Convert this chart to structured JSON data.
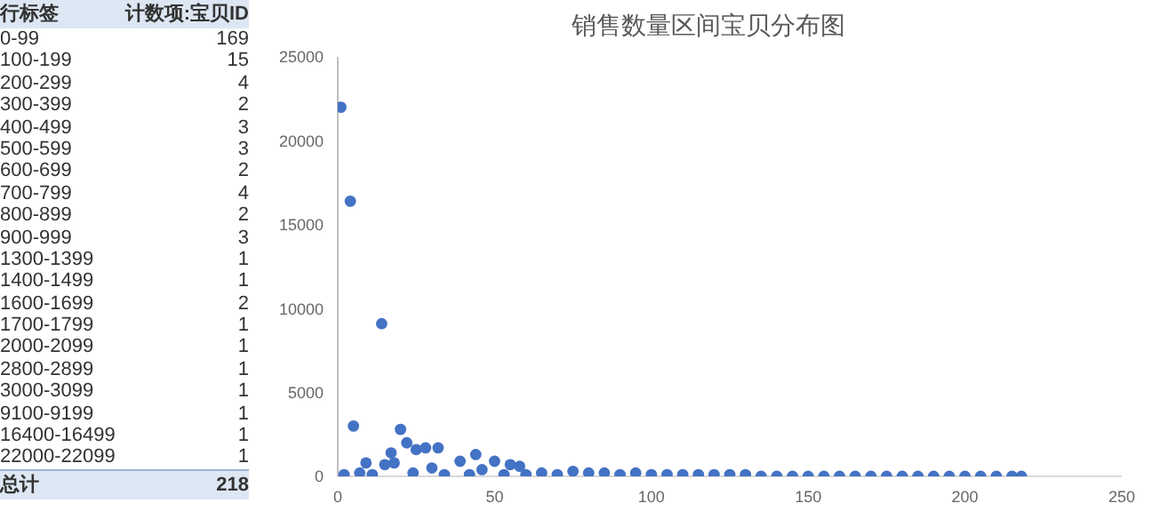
{
  "chart_data": [
    {
      "type": "other",
      "xlabel": "行标签",
      "ylabel": "计数项:宝贝ID",
      "categories": [
        "0-99",
        "100-199",
        "200-299",
        "300-399",
        "400-499",
        "500-599",
        "600-699",
        "700-799",
        "800-899",
        "900-999",
        "1300-1399",
        "1400-1499",
        "1600-1699",
        "1700-1799",
        "2000-2099",
        "2800-2899",
        "3000-3099",
        "9100-9199",
        "16400-16499",
        "22000-22099"
      ],
      "values": [
        169,
        15,
        4,
        2,
        3,
        3,
        2,
        4,
        2,
        3,
        1,
        1,
        2,
        1,
        1,
        1,
        1,
        1,
        1,
        1
      ],
      "data_labels": true,
      "annotations": [
        "总计"
      ],
      "totals": [
        "218"
      ]
    },
    {
      "type": "scatter",
      "title": "销售数量区间宝贝分布图",
      "marker": "circle",
      "grid": false,
      "xlim": [
        0,
        250
      ],
      "xticks": [
        0,
        50,
        100,
        150,
        200,
        250
      ],
      "ylim": [
        0,
        25000
      ],
      "yticks": [
        0,
        5000,
        10000,
        15000,
        20000,
        25000
      ],
      "series": [
        {
          "color": "#4472c4",
          "x": [
            1,
            2,
            4,
            5,
            7,
            9,
            11,
            14,
            15,
            17,
            18,
            20,
            22,
            24,
            25,
            28,
            30,
            32,
            34,
            39,
            42,
            44,
            46,
            50,
            53,
            55,
            58,
            60,
            65,
            70,
            75,
            80,
            85,
            90,
            95,
            100,
            105,
            110,
            115,
            120,
            125,
            130,
            135,
            140,
            145,
            150,
            155,
            160,
            165,
            170,
            175,
            180,
            185,
            190,
            195,
            200,
            205,
            210,
            215,
            218
          ],
          "values": [
            22000,
            100,
            16400,
            3000,
            200,
            800,
            100,
            9100,
            700,
            1400,
            800,
            2800,
            2000,
            200,
            1600,
            1700,
            500,
            1700,
            100,
            900,
            100,
            1300,
            400,
            900,
            100,
            700,
            600,
            100,
            200,
            100,
            300,
            200,
            200,
            100,
            200,
            100,
            100,
            100,
            100,
            100,
            100,
            100,
            0,
            0,
            0,
            0,
            0,
            0,
            0,
            0,
            0,
            0,
            0,
            0,
            0,
            0,
            0,
            0,
            0,
            0
          ]
        }
      ]
    }
  ]
}
